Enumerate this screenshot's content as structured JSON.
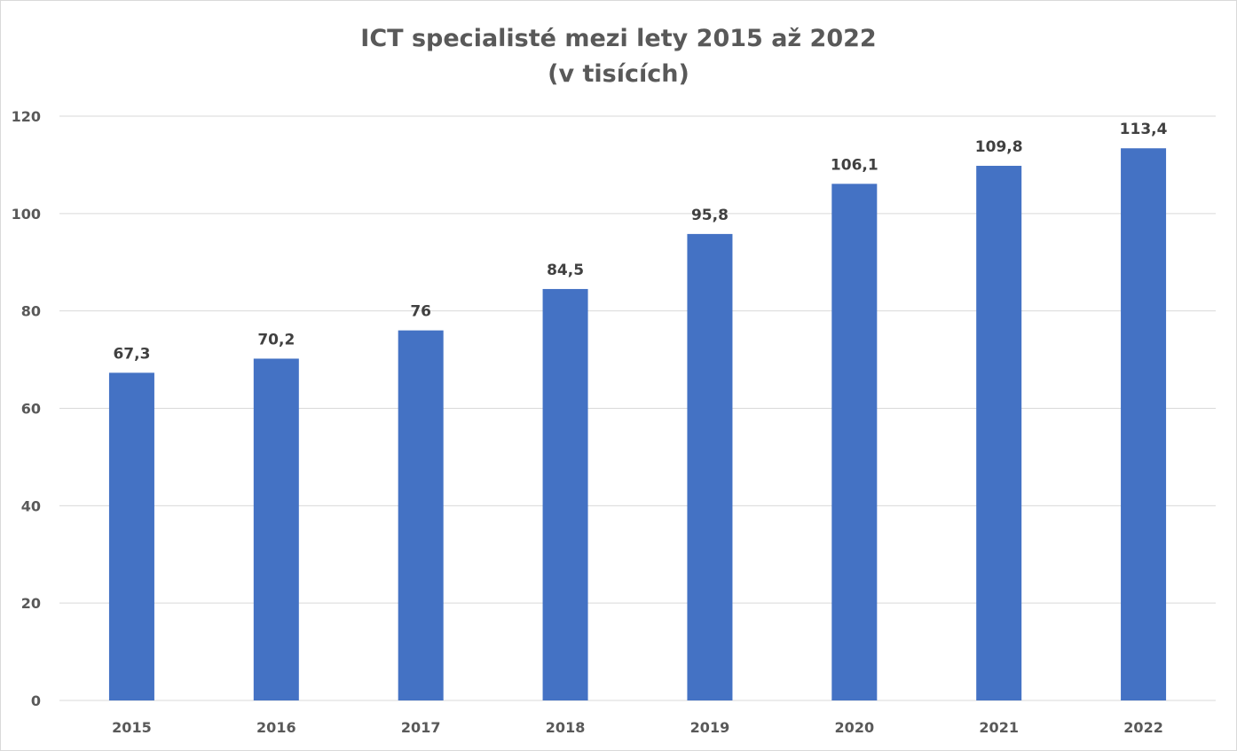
{
  "chart_data": {
    "type": "bar",
    "title": "ICT specialisté mezi lety 2015 až 2022",
    "subtitle": "(v tisících)",
    "categories": [
      "2015",
      "2016",
      "2017",
      "2018",
      "2019",
      "2020",
      "2021",
      "2022"
    ],
    "values": [
      67.3,
      70.2,
      76,
      84.5,
      95.8,
      106.1,
      109.8,
      113.4
    ],
    "data_labels": [
      "67,3",
      "70,2",
      "76",
      "84,5",
      "95,8",
      "106,1",
      "109,8",
      "113,4"
    ],
    "y_ticks": [
      "0",
      "20",
      "40",
      "60",
      "80",
      "100",
      "120"
    ],
    "ylim": [
      0,
      120
    ],
    "xlabel": "",
    "ylabel": "",
    "grid": true,
    "bar_color": "#4472C4",
    "gridline_color": "#d9d9d9"
  }
}
